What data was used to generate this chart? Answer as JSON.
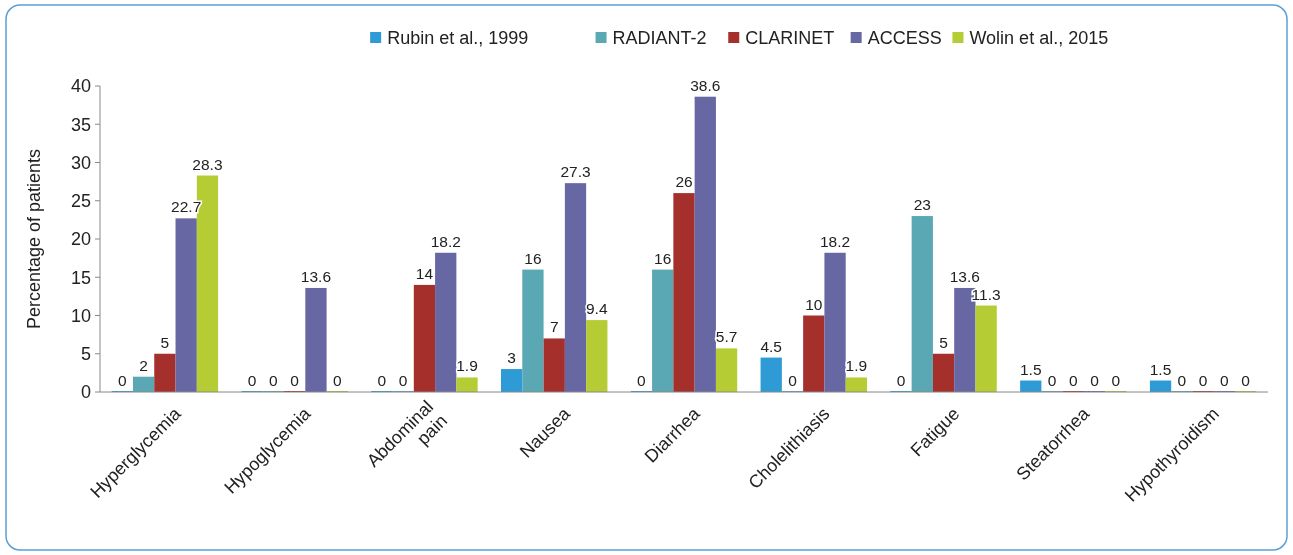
{
  "chart_data": {
    "type": "bar",
    "ylabel": "Percentage of patients",
    "categories": [
      "Hyperglycemia",
      "Hypoglycemia",
      "Abdominal pain",
      "Nausea",
      "Diarrhea",
      "Cholelithiasis",
      "Fatigue",
      "Steatorrhea",
      "Hypothyroidism"
    ],
    "series": [
      {
        "name": "Rubin et al., 1999",
        "color": "#2e9bd6",
        "values": [
          0,
          0,
          0,
          3,
          0,
          4.5,
          0,
          1.5,
          1.5
        ]
      },
      {
        "name": "RADIANT-2",
        "color": "#5aa8b4",
        "values": [
          2,
          0,
          0,
          16,
          16,
          0,
          23,
          0,
          0
        ]
      },
      {
        "name": "CLARINET",
        "color": "#a5302b",
        "values": [
          5,
          0,
          14,
          7,
          26,
          10,
          5,
          0,
          0
        ]
      },
      {
        "name": "ACCESS",
        "color": "#6667a3",
        "values": [
          22.7,
          13.6,
          18.2,
          27.3,
          38.6,
          18.2,
          13.6,
          0,
          0
        ]
      },
      {
        "name": "Wolin et al., 2015",
        "color": "#b5cc34",
        "values": [
          28.3,
          0,
          1.9,
          9.4,
          5.7,
          1.9,
          11.3,
          0,
          0
        ]
      }
    ],
    "ylim": [
      0,
      40
    ],
    "yticks": [
      0,
      5,
      10,
      15,
      20,
      25,
      30,
      35,
      40
    ],
    "grid": false,
    "legend": "top",
    "data_labels": true
  }
}
